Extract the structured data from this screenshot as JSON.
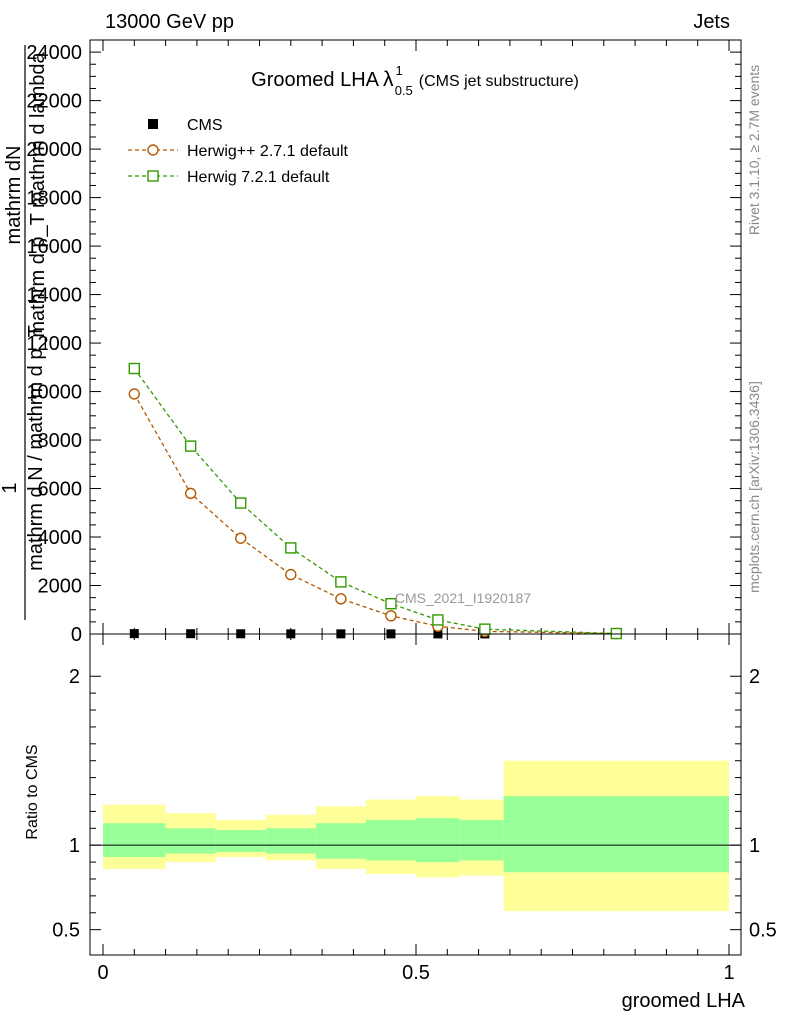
{
  "header": {
    "left": "13000 GeV pp",
    "right": "Jets"
  },
  "side_text": {
    "rivet": "Rivet 3.1.10, ≥ 2.7M events",
    "mcplots": "mcplots.cern.ch [arXiv:1306.3436]"
  },
  "colors": {
    "cms": "#000000",
    "herwigpp": "#b35900",
    "herwig7": "#339900",
    "band_inner": "#99ff99",
    "band_outer": "#ffff99"
  },
  "chart_data": [
    {
      "type": "scatter",
      "title": "Groomed LHA",
      "title_symbol": "λ",
      "title_sup": "1",
      "title_sub": "0.5",
      "title_suffix": "(CMS jet substructure)",
      "ylabel_top": "mathrm dN",
      "ylabel_frac": "mathrm d p_T mathrm d lambda",
      "ylabel_one": "1",
      "ylabel_bottom": "mathrm d N / mathrm d p_T",
      "watermark": "CMS_2021_I1920187",
      "xlim": [
        0,
        1
      ],
      "ylim": [
        0,
        24500
      ],
      "y_ticks": [
        0,
        2000,
        4000,
        6000,
        8000,
        10000,
        12000,
        14000,
        16000,
        18000,
        20000,
        22000,
        24000
      ],
      "y_tick_labels": [
        "0",
        "2000",
        "4000",
        "6000",
        "8000",
        "10000",
        "12000",
        "14000",
        "16000",
        "18000",
        "20000",
        "22000",
        "24000"
      ],
      "legend_position": "top-left",
      "series": [
        {
          "name": "CMS",
          "marker": "filled-square",
          "x": [
            0.05,
            0.14,
            0.22,
            0.3,
            0.38,
            0.46,
            0.535,
            0.61,
            0.82
          ],
          "y": [
            15,
            12,
            9,
            7,
            6,
            5,
            4,
            3,
            1
          ]
        },
        {
          "name": "Herwig++ 2.7.1 default",
          "marker": "open-circle",
          "x": [
            0.05,
            0.14,
            0.22,
            0.3,
            0.38,
            0.46,
            0.535,
            0.61,
            0.82
          ],
          "y": [
            9900,
            5800,
            3950,
            2450,
            1450,
            750,
            320,
            110,
            15
          ]
        },
        {
          "name": "Herwig 7.2.1 default",
          "marker": "open-square",
          "x": [
            0.05,
            0.14,
            0.22,
            0.3,
            0.38,
            0.46,
            0.535,
            0.61,
            0.82
          ],
          "y": [
            10950,
            7750,
            5400,
            3550,
            2150,
            1250,
            580,
            200,
            20
          ]
        }
      ]
    },
    {
      "type": "area",
      "ylabel": "Ratio to CMS",
      "xlabel": "groomed LHA",
      "xlim": [
        0,
        1
      ],
      "ylim": [
        0.35,
        2.25
      ],
      "x_ticks": [
        0,
        0.5,
        1
      ],
      "x_tick_labels": [
        "0",
        "0.5",
        "1"
      ],
      "y_ticks": [
        0.5,
        1,
        2
      ],
      "y_tick_labels": [
        "0.5",
        "1",
        "2"
      ],
      "bins": [
        {
          "lo": 0.0,
          "hi": 0.1,
          "inner": [
            0.93,
            1.13
          ],
          "outer": [
            0.86,
            1.24
          ]
        },
        {
          "lo": 0.1,
          "hi": 0.18,
          "inner": [
            0.95,
            1.1
          ],
          "outer": [
            0.9,
            1.19
          ]
        },
        {
          "lo": 0.18,
          "hi": 0.26,
          "inner": [
            0.96,
            1.09
          ],
          "outer": [
            0.93,
            1.15
          ]
        },
        {
          "lo": 0.26,
          "hi": 0.34,
          "inner": [
            0.95,
            1.1
          ],
          "outer": [
            0.91,
            1.18
          ]
        },
        {
          "lo": 0.34,
          "hi": 0.42,
          "inner": [
            0.92,
            1.13
          ],
          "outer": [
            0.86,
            1.23
          ]
        },
        {
          "lo": 0.42,
          "hi": 0.5,
          "inner": [
            0.91,
            1.15
          ],
          "outer": [
            0.83,
            1.27
          ]
        },
        {
          "lo": 0.5,
          "hi": 0.57,
          "inner": [
            0.9,
            1.16
          ],
          "outer": [
            0.81,
            1.29
          ]
        },
        {
          "lo": 0.57,
          "hi": 0.64,
          "inner": [
            0.91,
            1.15
          ],
          "outer": [
            0.82,
            1.27
          ]
        },
        {
          "lo": 0.64,
          "hi": 1.0,
          "inner": [
            0.84,
            1.29
          ],
          "outer": [
            0.61,
            1.5
          ]
        }
      ]
    }
  ]
}
